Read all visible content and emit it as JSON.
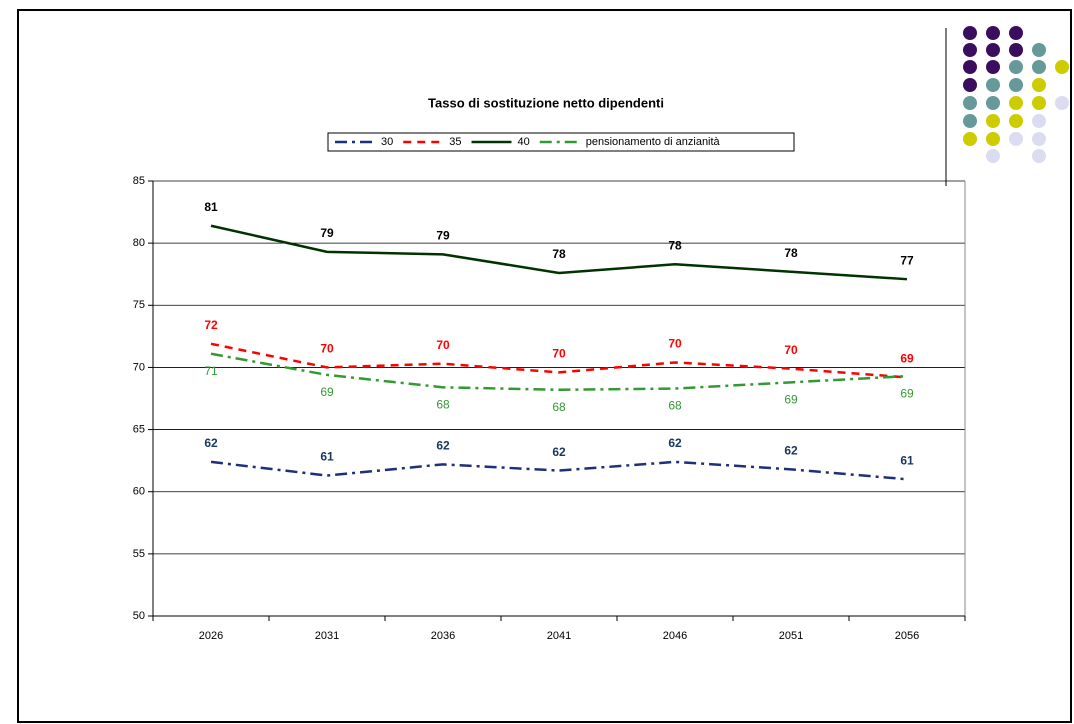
{
  "chart_data": {
    "type": "line",
    "title": "Tasso di sostituzione netto dipendenti",
    "categories": [
      "2026",
      "2031",
      "2036",
      "2041",
      "2046",
      "2051",
      "2056"
    ],
    "series": [
      {
        "name": "30",
        "color": "#1f2f7a",
        "style": "dashdot",
        "values": [
          62.4,
          61.3,
          62.2,
          61.7,
          62.4,
          61.8,
          61.0
        ],
        "value_labels": [
          "62",
          "61",
          "62",
          "62",
          "62",
          "62",
          "61"
        ],
        "label_color": "#17375e"
      },
      {
        "name": "35",
        "color": "#ff0000",
        "style": "dashed",
        "values": [
          71.9,
          70.0,
          70.3,
          69.6,
          70.4,
          69.9,
          69.2
        ],
        "value_labels": [
          "72",
          "70",
          "70",
          "70",
          "70",
          "70",
          "69"
        ],
        "label_color": "#ff0000"
      },
      {
        "name": "40",
        "color": "#003300",
        "style": "solid",
        "values": [
          81.4,
          79.3,
          79.1,
          77.6,
          78.3,
          77.7,
          77.1
        ],
        "value_labels": [
          "81",
          "79",
          "79",
          "78",
          "78",
          "78",
          "77"
        ],
        "label_color": "#000000"
      },
      {
        "name": "pensionamento di anzianità",
        "color": "#339933",
        "style": "dashdot",
        "values": [
          71.1,
          69.4,
          68.4,
          68.2,
          68.3,
          68.8,
          69.3
        ],
        "value_labels": [
          "71",
          "69",
          "68",
          "68",
          "68",
          "69",
          "69"
        ],
        "label_color": "#339933"
      }
    ],
    "ylim": [
      50,
      85
    ],
    "yticks": [
      50,
      55,
      60,
      65,
      70,
      75,
      80,
      85
    ],
    "grid": true
  }
}
